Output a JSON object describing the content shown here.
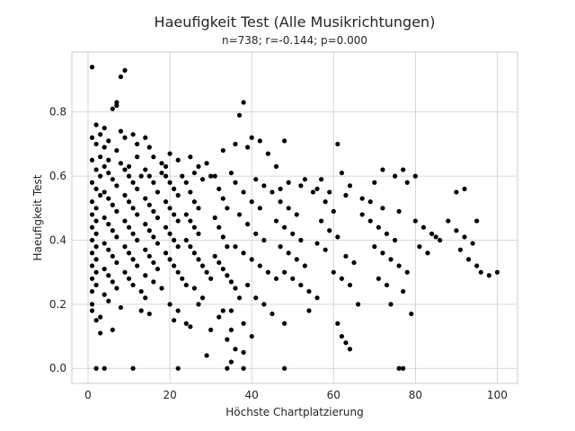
{
  "chart_data": {
    "type": "scatter",
    "title": "Haeufigkeit Test (Alle Musikrichtungen)",
    "subtitle": "n=738; r=-0.144; p=0.000",
    "xlabel": "Höchste Chartplatzierung",
    "ylabel": "Haeufigkeit Test",
    "xlim": [
      -3.95,
      104.95
    ],
    "ylim": [
      -0.047,
      0.987
    ],
    "xticks": [
      0,
      20,
      40,
      60,
      80,
      100
    ],
    "xtick_labels": [
      "0",
      "20",
      "40",
      "60",
      "80",
      "100"
    ],
    "yticks": [
      0.0,
      0.2,
      0.4,
      0.6,
      0.8
    ],
    "ytick_labels": [
      "0.0",
      "0.2",
      "0.4",
      "0.6",
      "0.8"
    ],
    "grid": true,
    "marker_color": "#000000",
    "points": [
      [
        1,
        0.94
      ],
      [
        8,
        0.91
      ],
      [
        9,
        0.93
      ],
      [
        7,
        0.82
      ],
      [
        6,
        0.81
      ],
      [
        7,
        0.83
      ],
      [
        37,
        0.79
      ],
      [
        38,
        0.83
      ],
      [
        2,
        0.76
      ],
      [
        4,
        0.75
      ],
      [
        3,
        0.73
      ],
      [
        1,
        0.72
      ],
      [
        2,
        0.7
      ],
      [
        4,
        0.69
      ],
      [
        5,
        0.71
      ],
      [
        8,
        0.74
      ],
      [
        9,
        0.72
      ],
      [
        11,
        0.73
      ],
      [
        7,
        0.68
      ],
      [
        12,
        0.7
      ],
      [
        14,
        0.72
      ],
      [
        15,
        0.69
      ],
      [
        16,
        0.66
      ],
      [
        18,
        0.64
      ],
      [
        20,
        0.67
      ],
      [
        19,
        0.63
      ],
      [
        22,
        0.65
      ],
      [
        25,
        0.66
      ],
      [
        27,
        0.63
      ],
      [
        29,
        0.64
      ],
      [
        33,
        0.68
      ],
      [
        36,
        0.7
      ],
      [
        39,
        0.69
      ],
      [
        42,
        0.71
      ],
      [
        48,
        0.71
      ],
      [
        44,
        0.67
      ],
      [
        40,
        0.72
      ],
      [
        61,
        0.7
      ],
      [
        72,
        0.62
      ],
      [
        77,
        0.62
      ],
      [
        62,
        0.61
      ],
      [
        46,
        0.63
      ],
      [
        53,
        0.59
      ],
      [
        57,
        0.59
      ],
      [
        64,
        0.57
      ],
      [
        70,
        0.58
      ],
      [
        75,
        0.6
      ],
      [
        78,
        0.58
      ],
      [
        80,
        0.6
      ],
      [
        90,
        0.55
      ],
      [
        92,
        0.56
      ],
      [
        1,
        0.65
      ],
      [
        2,
        0.62
      ],
      [
        3,
        0.6
      ],
      [
        1,
        0.58
      ],
      [
        2,
        0.56
      ],
      [
        3,
        0.54
      ],
      [
        1,
        0.52
      ],
      [
        2,
        0.5
      ],
      [
        1,
        0.48
      ],
      [
        2,
        0.46
      ],
      [
        1,
        0.44
      ],
      [
        2,
        0.42
      ],
      [
        1,
        0.4
      ],
      [
        2,
        0.38
      ],
      [
        1,
        0.36
      ],
      [
        2,
        0.34
      ],
      [
        1,
        0.32
      ],
      [
        2,
        0.3
      ],
      [
        1,
        0.28
      ],
      [
        2,
        0.26
      ],
      [
        1,
        0.24
      ],
      [
        1,
        0.2
      ],
      [
        1,
        0.18
      ],
      [
        2,
        0.15
      ],
      [
        4,
        0.63
      ],
      [
        5,
        0.61
      ],
      [
        6,
        0.59
      ],
      [
        7,
        0.57
      ],
      [
        4,
        0.55
      ],
      [
        5,
        0.53
      ],
      [
        6,
        0.51
      ],
      [
        7,
        0.49
      ],
      [
        4,
        0.47
      ],
      [
        5,
        0.45
      ],
      [
        6,
        0.43
      ],
      [
        7,
        0.41
      ],
      [
        4,
        0.39
      ],
      [
        5,
        0.37
      ],
      [
        6,
        0.35
      ],
      [
        7,
        0.33
      ],
      [
        4,
        0.31
      ],
      [
        5,
        0.29
      ],
      [
        6,
        0.27
      ],
      [
        7,
        0.25
      ],
      [
        4,
        0.23
      ],
      [
        5,
        0.21
      ],
      [
        8,
        0.19
      ],
      [
        3,
        0.16
      ],
      [
        6,
        0.12
      ],
      [
        3,
        0.11
      ],
      [
        9,
        0.62
      ],
      [
        10,
        0.6
      ],
      [
        11,
        0.58
      ],
      [
        12,
        0.56
      ],
      [
        9,
        0.54
      ],
      [
        10,
        0.52
      ],
      [
        11,
        0.5
      ],
      [
        12,
        0.48
      ],
      [
        9,
        0.46
      ],
      [
        10,
        0.44
      ],
      [
        11,
        0.42
      ],
      [
        12,
        0.4
      ],
      [
        9,
        0.38
      ],
      [
        10,
        0.36
      ],
      [
        11,
        0.34
      ],
      [
        12,
        0.32
      ],
      [
        9,
        0.3
      ],
      [
        10,
        0.28
      ],
      [
        11,
        0.26
      ],
      [
        13,
        0.24
      ],
      [
        14,
        0.22
      ],
      [
        13,
        0.18
      ],
      [
        15,
        0.17
      ],
      [
        14,
        0.62
      ],
      [
        15,
        0.6
      ],
      [
        16,
        0.58
      ],
      [
        17,
        0.55
      ],
      [
        14,
        0.53
      ],
      [
        15,
        0.51
      ],
      [
        16,
        0.49
      ],
      [
        17,
        0.47
      ],
      [
        14,
        0.45
      ],
      [
        15,
        0.43
      ],
      [
        16,
        0.41
      ],
      [
        17,
        0.39
      ],
      [
        14,
        0.37
      ],
      [
        15,
        0.35
      ],
      [
        16,
        0.33
      ],
      [
        17,
        0.31
      ],
      [
        14,
        0.29
      ],
      [
        16,
        0.27
      ],
      [
        18,
        0.25
      ],
      [
        19,
        0.6
      ],
      [
        20,
        0.58
      ],
      [
        21,
        0.56
      ],
      [
        22,
        0.54
      ],
      [
        19,
        0.52
      ],
      [
        20,
        0.5
      ],
      [
        21,
        0.48
      ],
      [
        22,
        0.46
      ],
      [
        19,
        0.44
      ],
      [
        20,
        0.42
      ],
      [
        21,
        0.4
      ],
      [
        22,
        0.38
      ],
      [
        19,
        0.36
      ],
      [
        20,
        0.34
      ],
      [
        21,
        0.32
      ],
      [
        22,
        0.3
      ],
      [
        23,
        0.28
      ],
      [
        24,
        0.26
      ],
      [
        20,
        0.2
      ],
      [
        22,
        0.18
      ],
      [
        21,
        0.15
      ],
      [
        24,
        0.14
      ],
      [
        24,
        0.58
      ],
      [
        25,
        0.55
      ],
      [
        26,
        0.52
      ],
      [
        27,
        0.5
      ],
      [
        24,
        0.48
      ],
      [
        25,
        0.46
      ],
      [
        26,
        0.44
      ],
      [
        27,
        0.42
      ],
      [
        24,
        0.4
      ],
      [
        25,
        0.38
      ],
      [
        26,
        0.36
      ],
      [
        27,
        0.34
      ],
      [
        28,
        0.32
      ],
      [
        29,
        0.3
      ],
      [
        30,
        0.28
      ],
      [
        26,
        0.25
      ],
      [
        28,
        0.22
      ],
      [
        27,
        0.2
      ],
      [
        25,
        0.13
      ],
      [
        30,
        0.12
      ],
      [
        29,
        0.04
      ],
      [
        32,
        0.16
      ],
      [
        31,
        0.6
      ],
      [
        32,
        0.56
      ],
      [
        33,
        0.53
      ],
      [
        34,
        0.5
      ],
      [
        31,
        0.47
      ],
      [
        32,
        0.44
      ],
      [
        33,
        0.41
      ],
      [
        34,
        0.38
      ],
      [
        31,
        0.35
      ],
      [
        32,
        0.33
      ],
      [
        33,
        0.31
      ],
      [
        34,
        0.29
      ],
      [
        35,
        0.27
      ],
      [
        36,
        0.25
      ],
      [
        37,
        0.22
      ],
      [
        35,
        0.18
      ],
      [
        33,
        0.18
      ],
      [
        38,
        0.14
      ],
      [
        35,
        0.12
      ],
      [
        34,
        0.09
      ],
      [
        35,
        0.02
      ],
      [
        36,
        0.58
      ],
      [
        38,
        0.55
      ],
      [
        40,
        0.52
      ],
      [
        42,
        0.5
      ],
      [
        37,
        0.48
      ],
      [
        39,
        0.45
      ],
      [
        41,
        0.42
      ],
      [
        43,
        0.4
      ],
      [
        36,
        0.38
      ],
      [
        38,
        0.36
      ],
      [
        40,
        0.34
      ],
      [
        42,
        0.32
      ],
      [
        44,
        0.3
      ],
      [
        46,
        0.28
      ],
      [
        39,
        0.26
      ],
      [
        41,
        0.22
      ],
      [
        43,
        0.2
      ],
      [
        45,
        0.17
      ],
      [
        40,
        0.1
      ],
      [
        36,
        0.06
      ],
      [
        38,
        0.05
      ],
      [
        45,
        0.55
      ],
      [
        47,
        0.52
      ],
      [
        49,
        0.5
      ],
      [
        51,
        0.48
      ],
      [
        46,
        0.46
      ],
      [
        48,
        0.44
      ],
      [
        50,
        0.42
      ],
      [
        52,
        0.4
      ],
      [
        47,
        0.38
      ],
      [
        49,
        0.36
      ],
      [
        51,
        0.34
      ],
      [
        53,
        0.32
      ],
      [
        48,
        0.3
      ],
      [
        50,
        0.28
      ],
      [
        52,
        0.26
      ],
      [
        54,
        0.24
      ],
      [
        56,
        0.22
      ],
      [
        54,
        0.18
      ],
      [
        48,
        0.14
      ],
      [
        55,
        0.55
      ],
      [
        58,
        0.52
      ],
      [
        60,
        0.49
      ],
      [
        57,
        0.46
      ],
      [
        59,
        0.43
      ],
      [
        61,
        0.41
      ],
      [
        56,
        0.39
      ],
      [
        58,
        0.37
      ],
      [
        63,
        0.35
      ],
      [
        65,
        0.33
      ],
      [
        60,
        0.3
      ],
      [
        62,
        0.28
      ],
      [
        64,
        0.26
      ],
      [
        66,
        0.2
      ],
      [
        61,
        0.14
      ],
      [
        62,
        0.1
      ],
      [
        63,
        0.08
      ],
      [
        64,
        0.06
      ],
      [
        67,
        0.48
      ],
      [
        69,
        0.46
      ],
      [
        71,
        0.44
      ],
      [
        73,
        0.42
      ],
      [
        75,
        0.4
      ],
      [
        70,
        0.38
      ],
      [
        72,
        0.36
      ],
      [
        74,
        0.34
      ],
      [
        76,
        0.32
      ],
      [
        78,
        0.3
      ],
      [
        71,
        0.28
      ],
      [
        73,
        0.26
      ],
      [
        77,
        0.24
      ],
      [
        74,
        0.2
      ],
      [
        79,
        0.17
      ],
      [
        80,
        0.46
      ],
      [
        82,
        0.44
      ],
      [
        84,
        0.42
      ],
      [
        86,
        0.4
      ],
      [
        81,
        0.38
      ],
      [
        83,
        0.36
      ],
      [
        88,
        0.46
      ],
      [
        90,
        0.43
      ],
      [
        92,
        0.41
      ],
      [
        94,
        0.39
      ],
      [
        91,
        0.37
      ],
      [
        93,
        0.34
      ],
      [
        95,
        0.32
      ],
      [
        96,
        0.3
      ],
      [
        98,
        0.29
      ],
      [
        100,
        0.3
      ],
      [
        95,
        0.46
      ],
      [
        85,
        0.41
      ],
      [
        2,
        0.0
      ],
      [
        4,
        0.0
      ],
      [
        11,
        0.0
      ],
      [
        22,
        0.0
      ],
      [
        34,
        0.0
      ],
      [
        38,
        0.0
      ],
      [
        48,
        0.0
      ],
      [
        76,
        0.0
      ],
      [
        77,
        0.0
      ],
      [
        3,
        0.66
      ],
      [
        5,
        0.65
      ],
      [
        8,
        0.64
      ],
      [
        10,
        0.63
      ],
      [
        12,
        0.66
      ],
      [
        13,
        0.6
      ],
      [
        18,
        0.61
      ],
      [
        23,
        0.6
      ],
      [
        26,
        0.61
      ],
      [
        28,
        0.59
      ],
      [
        30,
        0.6
      ],
      [
        35,
        0.61
      ],
      [
        41,
        0.59
      ],
      [
        43,
        0.57
      ],
      [
        47,
        0.56
      ],
      [
        49,
        0.58
      ],
      [
        52,
        0.57
      ],
      [
        56,
        0.56
      ],
      [
        59,
        0.55
      ],
      [
        63,
        0.54
      ],
      [
        67,
        0.53
      ],
      [
        69,
        0.52
      ],
      [
        72,
        0.5
      ],
      [
        76,
        0.49
      ]
    ]
  }
}
